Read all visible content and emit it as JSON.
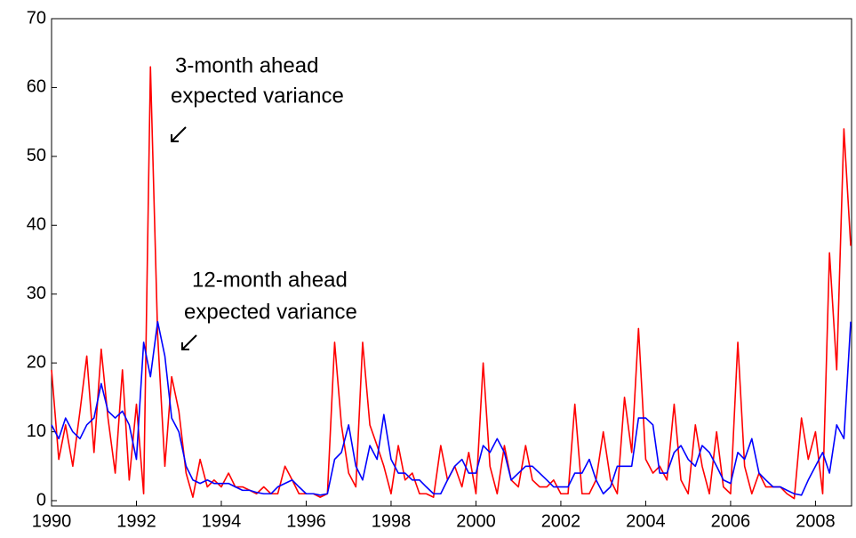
{
  "chart_data": {
    "type": "line",
    "annotations": [
      [
        "3-month ahead",
        "expected variance"
      ],
      [
        "12-month ahead",
        "expected variance"
      ]
    ],
    "x": [
      1990,
      1990.17,
      1990.33,
      1990.5,
      1990.67,
      1990.83,
      1991,
      1991.17,
      1991.33,
      1991.5,
      1991.67,
      1991.83,
      1992,
      1992.17,
      1992.33,
      1992.5,
      1992.67,
      1992.83,
      1993,
      1993.17,
      1993.33,
      1993.5,
      1993.67,
      1993.83,
      1994,
      1994.17,
      1994.33,
      1994.5,
      1994.67,
      1994.83,
      1995,
      1995.17,
      1995.33,
      1995.5,
      1995.67,
      1995.83,
      1996,
      1996.17,
      1996.33,
      1996.5,
      1996.67,
      1996.83,
      1997,
      1997.17,
      1997.33,
      1997.5,
      1997.67,
      1997.83,
      1998,
      1998.17,
      1998.33,
      1998.5,
      1998.67,
      1998.83,
      1999,
      1999.17,
      1999.33,
      1999.5,
      1999.67,
      1999.83,
      2000,
      2000.17,
      2000.33,
      2000.5,
      2000.67,
      2000.83,
      2001,
      2001.17,
      2001.33,
      2001.5,
      2001.67,
      2001.83,
      2002,
      2002.17,
      2002.33,
      2002.5,
      2002.67,
      2002.83,
      2003,
      2003.17,
      2003.33,
      2003.5,
      2003.67,
      2003.83,
      2004,
      2004.17,
      2004.33,
      2004.5,
      2004.67,
      2004.83,
      2005,
      2005.17,
      2005.33,
      2005.5,
      2005.67,
      2005.83,
      2006,
      2006.17,
      2006.33,
      2006.5,
      2006.67,
      2006.83,
      2007,
      2007.17,
      2007.33,
      2007.5,
      2007.67,
      2007.83,
      2008,
      2008.17,
      2008.33,
      2008.5,
      2008.67,
      2008.83
    ],
    "series": [
      {
        "color": "#ff0000",
        "values": [
          19,
          6,
          11,
          5,
          13,
          21,
          7,
          22,
          12,
          4,
          19,
          3,
          14,
          1,
          63,
          24,
          5,
          18,
          13,
          4,
          0.5,
          6,
          2,
          3,
          2,
          4,
          2,
          2,
          1.5,
          1,
          2,
          1,
          1,
          5,
          3,
          1,
          1,
          1,
          0.5,
          1,
          23,
          11,
          4,
          2,
          23,
          11,
          8,
          5,
          1,
          8,
          3,
          4,
          1,
          1,
          0.5,
          8,
          3,
          5,
          2,
          7,
          1,
          20,
          5,
          1,
          8,
          3,
          2,
          8,
          3,
          2,
          2,
          3,
          1,
          1,
          14,
          1,
          1,
          3,
          10,
          3,
          1,
          15,
          7,
          25,
          6,
          4,
          5,
          3,
          14,
          3,
          1,
          11,
          5,
          1,
          10,
          2,
          1,
          23,
          5,
          1,
          4,
          2,
          2,
          2,
          1,
          0.3,
          12,
          6,
          10,
          1,
          36,
          19,
          54,
          37
        ]
      },
      {
        "color": "#0000ff",
        "values": [
          11,
          9,
          12,
          10,
          9,
          11,
          12,
          17,
          13,
          12,
          13,
          11,
          6,
          23,
          18,
          26,
          21,
          12,
          10,
          5,
          3,
          2.5,
          3,
          2.5,
          2.5,
          2.5,
          2,
          1.5,
          1.5,
          1.2,
          1,
          1,
          2,
          2.5,
          3,
          2,
          1,
          1,
          0.8,
          1,
          6,
          7,
          11,
          5,
          3,
          8,
          6,
          12.5,
          6,
          4,
          4,
          3,
          3,
          2,
          1,
          1,
          3,
          5,
          6,
          4,
          4,
          8,
          7,
          9,
          7,
          3,
          4,
          5,
          5,
          4,
          3,
          2,
          2,
          2,
          4,
          4,
          6,
          3,
          1,
          2,
          5,
          5,
          5,
          12,
          12,
          11,
          4,
          4,
          7,
          8,
          6,
          5,
          8,
          7,
          5,
          3,
          2.5,
          7,
          6,
          9,
          4,
          3,
          2,
          2,
          1.5,
          1,
          0.8,
          3,
          5,
          7,
          4,
          11,
          9,
          26
        ]
      }
    ],
    "xlim": [
      1990,
      2008.85
    ],
    "xticks": [
      1990,
      1992,
      1994,
      1996,
      1998,
      2000,
      2002,
      2004,
      2006,
      2008
    ],
    "ylim": [
      0,
      70
    ],
    "yticks": [
      0,
      10,
      20,
      30,
      40,
      50,
      60,
      70
    ]
  }
}
